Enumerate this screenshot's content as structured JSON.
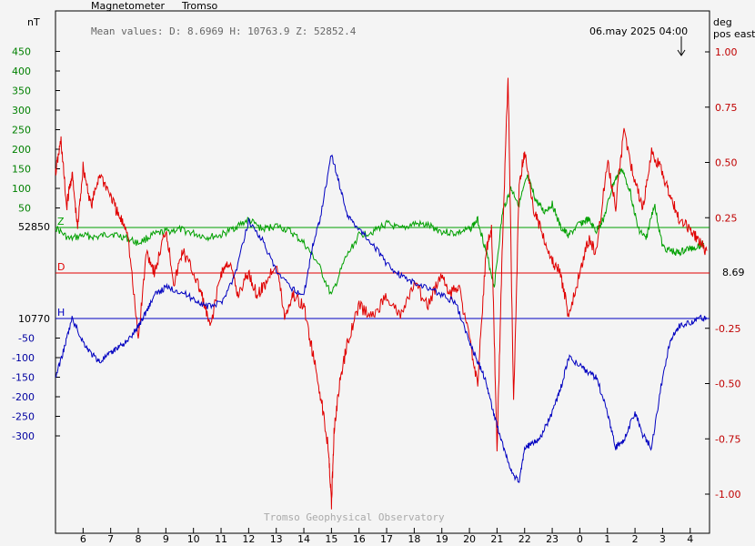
{
  "header": {
    "title": "Magnetometer",
    "station": "Tromso",
    "mean_values": "Mean values:  D: 8.6969   H: 10763.9   Z: 52852.4",
    "timestamp": "06.may 2025 04:00",
    "footer": "Tromso Geophysical Observatory"
  },
  "axes": {
    "left_unit": "nT",
    "right_unit_1": "deg",
    "right_unit_2": "pos east",
    "z_baseline_label": "52850",
    "h_baseline_label": "10770",
    "d_baseline_label": "8.69",
    "z_marker": "Z",
    "d_marker": "D",
    "h_marker": "H"
  },
  "colors": {
    "z": "#00a000",
    "d": "#e00000",
    "h": "#0000c0",
    "axis": "#000000",
    "green_text": "#008000",
    "blue_text": "#0000a0",
    "red_text": "#c00000"
  },
  "chart_data": {
    "type": "line",
    "x_ticks": [
      "6",
      "7",
      "8",
      "9",
      "10",
      "11",
      "12",
      "13",
      "14",
      "15",
      "16",
      "17",
      "18",
      "19",
      "20",
      "21",
      "22",
      "23",
      "0",
      "1",
      "2",
      "3",
      "4"
    ],
    "y_left_green_ticks": [
      "450",
      "400",
      "350",
      "300",
      "250",
      "200",
      "150",
      "100",
      "50"
    ],
    "y_left_blue_ticks": [
      "-50",
      "-100",
      "-150",
      "-200",
      "-250",
      "-300"
    ],
    "y_right_ticks": [
      "1.00",
      "0.75",
      "0.50",
      "0.25",
      "-0.25",
      "-0.50",
      "-0.75",
      "-1.00"
    ],
    "series": [
      {
        "name": "Z",
        "unit": "nT",
        "baseline": 52850,
        "x": [
          5.0,
          5.5,
          6.0,
          6.5,
          7.0,
          7.5,
          8.0,
          8.5,
          9.0,
          9.5,
          10.0,
          10.5,
          11.0,
          11.5,
          12.0,
          12.5,
          13.0,
          13.5,
          14.0,
          14.5,
          15.0,
          15.5,
          16.0,
          16.5,
          17.0,
          17.5,
          18.0,
          18.5,
          19.0,
          19.5,
          20.0,
          20.3,
          20.6,
          20.9,
          21.2,
          21.5,
          21.8,
          22.1,
          22.4,
          22.7,
          23.0,
          23.3,
          23.6,
          24.0,
          24.3,
          24.6,
          24.9,
          25.2,
          25.5,
          25.8,
          26.1,
          26.4,
          26.7,
          27.0,
          27.3,
          27.6,
          27.9,
          28.2,
          28.5
        ],
        "y": [
          0,
          -30,
          -20,
          -25,
          -15,
          -25,
          -40,
          -20,
          -10,
          -5,
          -15,
          -25,
          -20,
          0,
          20,
          -5,
          5,
          -10,
          -40,
          -90,
          -175,
          -80,
          -20,
          -10,
          10,
          -5,
          10,
          5,
          -10,
          -15,
          -5,
          20,
          -60,
          -150,
          40,
          100,
          60,
          130,
          70,
          40,
          60,
          0,
          -20,
          10,
          20,
          -10,
          30,
          110,
          150,
          100,
          0,
          -30,
          60,
          -50,
          -60,
          -65,
          -55,
          -50,
          -40
        ]
      },
      {
        "name": "D",
        "unit": "deg",
        "baseline": 8.69,
        "x": [
          5.0,
          5.2,
          5.4,
          5.6,
          5.8,
          6.0,
          6.3,
          6.6,
          7.0,
          7.3,
          7.6,
          8.0,
          8.3,
          8.6,
          9.0,
          9.3,
          9.6,
          10.0,
          10.3,
          10.6,
          11.0,
          11.3,
          11.6,
          12.0,
          12.3,
          12.6,
          13.0,
          13.3,
          13.6,
          14.0,
          14.3,
          14.6,
          14.9,
          15.0,
          15.1,
          15.3,
          15.6,
          16.0,
          16.5,
          17.0,
          17.5,
          18.0,
          18.5,
          19.0,
          19.3,
          19.6,
          20.0,
          20.3,
          20.6,
          20.8,
          21.0,
          21.2,
          21.4,
          21.6,
          21.8,
          22.0,
          22.3,
          22.6,
          23.0,
          23.3,
          23.6,
          24.0,
          24.3,
          24.6,
          25.0,
          25.3,
          25.6,
          26.0,
          26.3,
          26.6,
          27.0,
          27.3,
          27.6,
          28.0,
          28.3,
          28.6
        ],
        "y": [
          0.45,
          0.6,
          0.3,
          0.45,
          0.2,
          0.48,
          0.3,
          0.45,
          0.35,
          0.25,
          0.2,
          -0.3,
          0.1,
          0.0,
          0.2,
          -0.05,
          0.1,
          0.0,
          -0.1,
          -0.25,
          0.0,
          0.05,
          -0.1,
          0.0,
          -0.1,
          -0.05,
          0.05,
          -0.2,
          -0.1,
          -0.15,
          -0.35,
          -0.55,
          -0.8,
          -1.05,
          -0.7,
          -0.5,
          -0.3,
          -0.15,
          -0.2,
          -0.1,
          -0.2,
          -0.05,
          -0.15,
          0.0,
          -0.1,
          -0.05,
          -0.3,
          -0.5,
          0.1,
          0.2,
          -0.8,
          0.15,
          0.9,
          -0.6,
          0.4,
          0.55,
          0.3,
          0.2,
          0.05,
          0.0,
          -0.2,
          0.0,
          0.15,
          0.1,
          0.5,
          0.3,
          0.65,
          0.4,
          0.3,
          0.55,
          0.45,
          0.35,
          0.25,
          0.2,
          0.15,
          0.1
        ]
      },
      {
        "name": "H",
        "unit": "nT",
        "baseline": 10770,
        "x": [
          5.0,
          5.3,
          5.6,
          6.0,
          6.3,
          6.6,
          7.0,
          7.3,
          7.6,
          8.0,
          8.3,
          8.6,
          9.0,
          9.5,
          10.0,
          10.5,
          11.0,
          11.5,
          12.0,
          12.5,
          13.0,
          13.5,
          14.0,
          14.3,
          14.6,
          15.0,
          15.3,
          15.6,
          16.0,
          16.5,
          17.0,
          17.5,
          18.0,
          18.5,
          19.0,
          19.5,
          20.0,
          20.3,
          20.6,
          20.9,
          21.2,
          21.5,
          21.8,
          22.0,
          22.3,
          22.6,
          23.0,
          23.3,
          23.6,
          24.0,
          24.3,
          24.6,
          25.0,
          25.3,
          25.6,
          26.0,
          26.3,
          26.6,
          27.0,
          27.3,
          27.6,
          28.0,
          28.3,
          28.6
        ],
        "y": [
          -150,
          -80,
          0,
          -60,
          -90,
          -110,
          -90,
          -70,
          -60,
          -20,
          20,
          60,
          80,
          70,
          50,
          30,
          40,
          110,
          250,
          200,
          120,
          80,
          60,
          180,
          260,
          420,
          340,
          260,
          230,
          190,
          140,
          110,
          90,
          80,
          60,
          40,
          -60,
          -110,
          -160,
          -250,
          -320,
          -390,
          -420,
          -330,
          -320,
          -300,
          -240,
          -180,
          -100,
          -120,
          -140,
          -150,
          -240,
          -330,
          -310,
          -240,
          -300,
          -330,
          -150,
          -50,
          -20,
          -10,
          0,
          0
        ]
      }
    ]
  }
}
